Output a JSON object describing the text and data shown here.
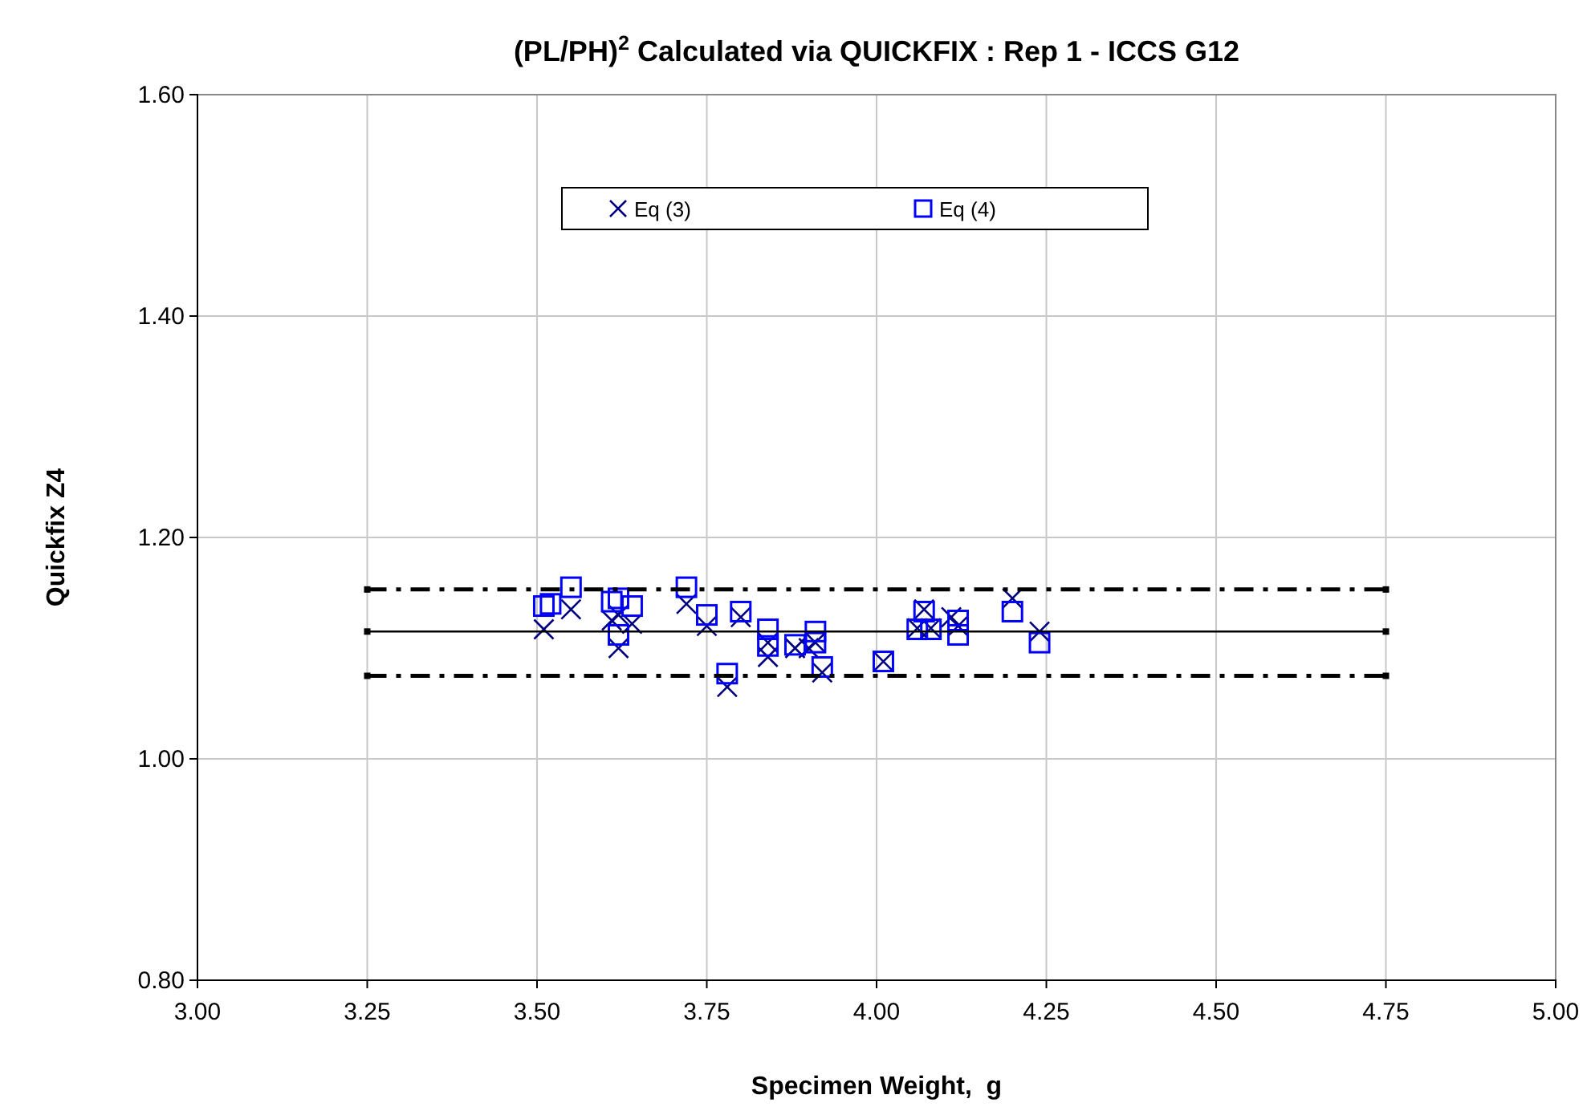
{
  "chart_data": {
    "type": "scatter",
    "title": "(PL/PH)$^{2}$ Calculated via QUICKFIX : Rep 1 - ICCS G12",
    "xlabel": "Specimen Weight,  g",
    "ylabel": "Quickfix Z4",
    "xlim": [
      3,
      5
    ],
    "xticks": [
      {
        "value": 3,
        "label": "3.00"
      },
      {
        "value": 3.25,
        "label": "3.25"
      },
      {
        "value": 3.5,
        "label": "3.50"
      },
      {
        "value": 3.75,
        "label": "3.75"
      },
      {
        "value": 4,
        "label": "4.00"
      },
      {
        "value": 4.25,
        "label": "4.25"
      },
      {
        "value": 4.5,
        "label": "4.50"
      },
      {
        "value": 4.75,
        "label": "4.75"
      },
      {
        "value": 5,
        "label": "5.00"
      }
    ],
    "ylim": [
      0.8,
      1.6
    ],
    "yticks": [
      {
        "value": 0.8,
        "label": "0.80"
      },
      {
        "value": 1,
        "label": "1.00"
      },
      {
        "value": 1.2,
        "label": "1.20"
      },
      {
        "value": 1.4,
        "label": "1.40"
      },
      {
        "value": 1.6,
        "label": "1.60"
      }
    ],
    "grid": true,
    "legend": "top",
    "series": [
      {
        "name": "Eq (3)",
        "color": "#000080",
        "marker": "cross",
        "x": [
          3.51,
          3.55,
          3.61,
          3.62,
          3.62,
          3.64,
          3.72,
          3.75,
          3.78,
          3.8,
          3.84,
          3.84,
          3.88,
          3.9,
          3.91,
          3.92,
          4.01,
          4.06,
          4.07,
          4.08,
          4.11,
          4.12,
          4.2,
          4.24
        ],
        "values": [
          1.117,
          1.135,
          1.125,
          1.1,
          1.13,
          1.122,
          1.14,
          1.12,
          1.065,
          1.128,
          1.092,
          1.105,
          1.1,
          1.1,
          1.105,
          1.078,
          1.088,
          1.118,
          1.135,
          1.118,
          1.128,
          1.12,
          1.145,
          1.115
        ]
      },
      {
        "name": "Eq (4)",
        "color": "#0000ff",
        "marker": "square",
        "x": [
          3.51,
          3.52,
          3.55,
          3.61,
          3.62,
          3.62,
          3.64,
          3.72,
          3.75,
          3.78,
          3.8,
          3.84,
          3.84,
          3.88,
          3.91,
          3.91,
          3.92,
          4.01,
          4.06,
          4.07,
          4.08,
          4.12,
          4.12,
          4.2,
          4.24
        ],
        "values": [
          1.138,
          1.14,
          1.155,
          1.142,
          1.112,
          1.145,
          1.138,
          1.155,
          1.13,
          1.077,
          1.133,
          1.102,
          1.117,
          1.103,
          1.115,
          1.105,
          1.083,
          1.088,
          1.117,
          1.133,
          1.117,
          1.125,
          1.112,
          1.133,
          1.105
        ]
      },
      {
        "type": "line",
        "color": "#000000",
        "marker": "square",
        "line_style": "dashdot",
        "x": [
          3.25,
          4.75
        ],
        "values": [
          1.153,
          1.153
        ]
      },
      {
        "type": "line",
        "color": "#000000",
        "marker": "square",
        "line_style": "solid",
        "x": [
          3.25,
          4.75
        ],
        "values": [
          1.115,
          1.115
        ]
      },
      {
        "type": "line",
        "color": "#000000",
        "marker": "square",
        "line_style": "dashdot",
        "x": [
          3.25,
          4.75
        ],
        "values": [
          1.075,
          1.075
        ]
      }
    ]
  }
}
